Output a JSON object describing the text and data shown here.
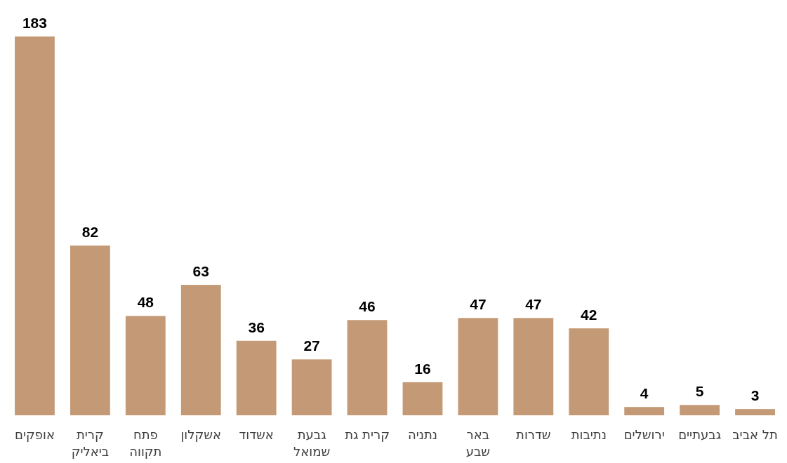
{
  "chart_data": {
    "type": "bar",
    "categories": [
      "אופקים",
      "קרית\nביאליק",
      "פתח\nתקווה",
      "אשקלון",
      "אשדוד",
      "גבעת\nשמואל",
      "קרית גת",
      "נתניה",
      "באר\nשבע",
      "שדרות",
      "נתיבות",
      "ירושלים",
      "גבעתיים",
      "תל אביב"
    ],
    "values": [
      183,
      82,
      48,
      63,
      36,
      27,
      46,
      16,
      47,
      47,
      42,
      4,
      5,
      3
    ],
    "color": "#c49a76",
    "data_labels": true
  }
}
